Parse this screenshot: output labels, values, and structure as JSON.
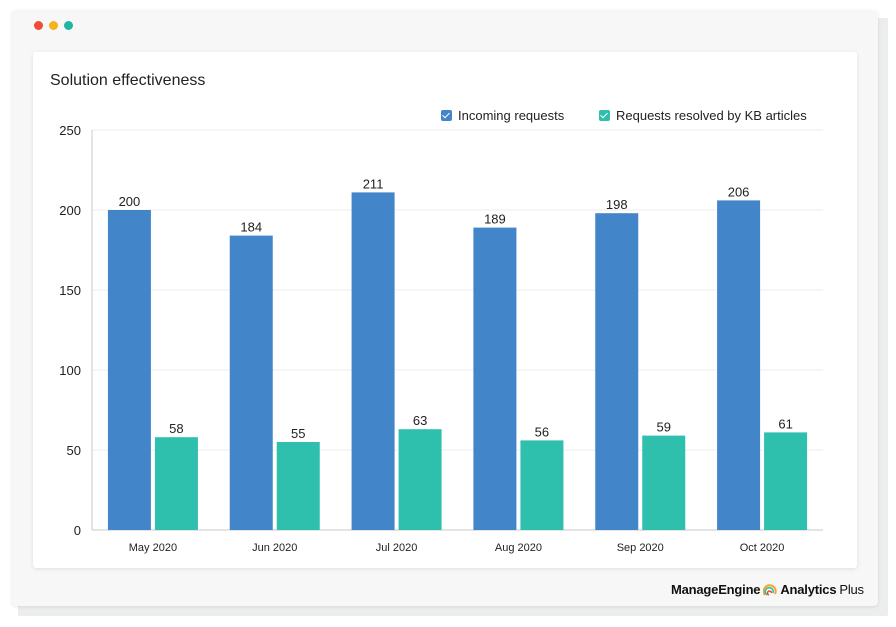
{
  "window": {
    "dots": [
      "#ee4e35",
      "#f5b31c",
      "#21b5a2"
    ]
  },
  "brand": {
    "name": "ManageEngine",
    "product": "Analytics",
    "edition": "Plus"
  },
  "colors": {
    "incoming": "#4285c8",
    "resolved": "#2ebfad",
    "grid": "#eeeeee",
    "axis": "#c8c8c8"
  },
  "chart_data": {
    "type": "bar",
    "title": "Solution effectiveness",
    "categories": [
      "May 2020",
      "Jun 2020",
      "Jul 2020",
      "Aug 2020",
      "Sep 2020",
      "Oct 2020"
    ],
    "series": [
      {
        "name": "Incoming requests",
        "values": [
          200,
          184,
          211,
          189,
          198,
          206
        ]
      },
      {
        "name": "Requests resolved by KB articles",
        "values": [
          58,
          55,
          63,
          56,
          59,
          61
        ]
      }
    ],
    "ylim": [
      0,
      250
    ],
    "yticks": [
      0,
      50,
      100,
      150,
      200,
      250
    ],
    "xlabel": "",
    "ylabel": "",
    "legend": "top-right",
    "grid": true
  }
}
